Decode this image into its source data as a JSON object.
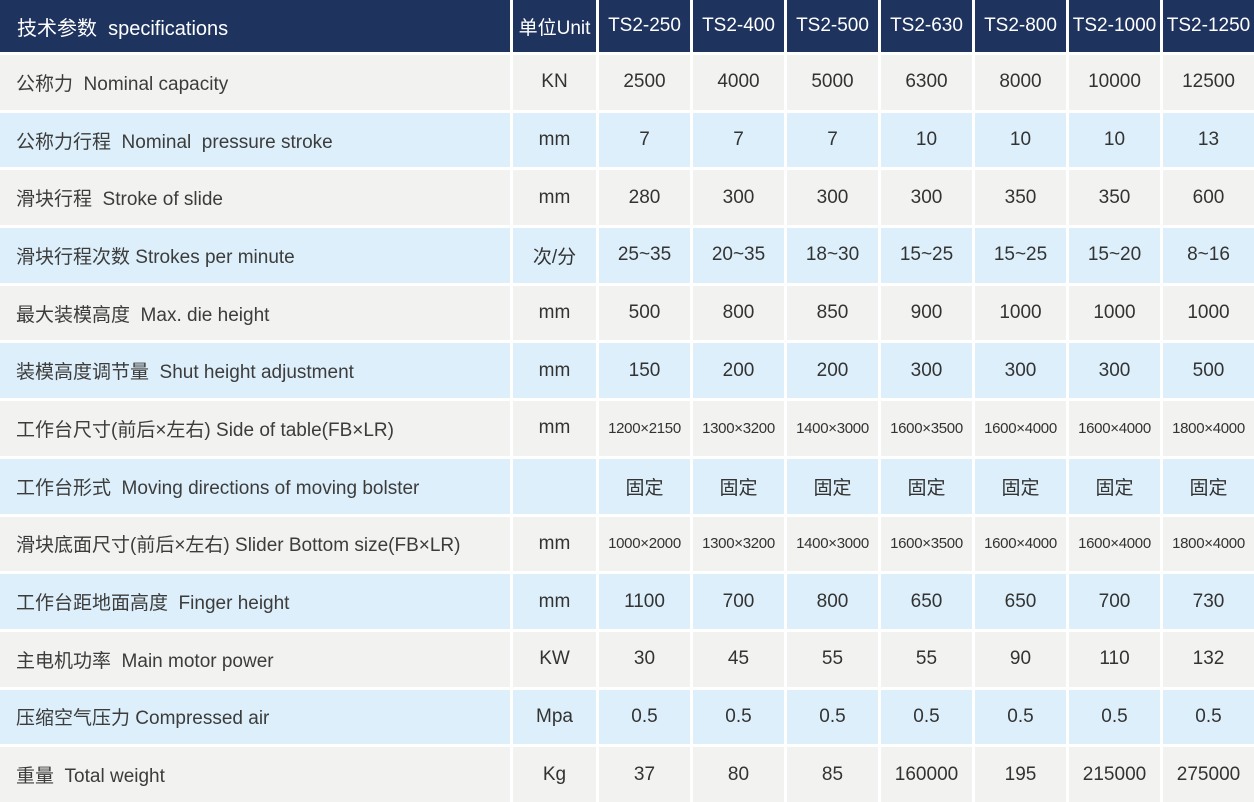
{
  "table": {
    "header": {
      "title": "技术参数  specifications",
      "unit_label": "单位Unit",
      "models": [
        "TS2-250",
        "TS2-400",
        "TS2-500",
        "TS2-630",
        "TS2-800",
        "TS2-1000",
        "TS2-1250"
      ]
    },
    "rows": [
      {
        "label": "公称力  Nominal capacity",
        "unit": "KN",
        "values": [
          "2500",
          "4000",
          "5000",
          "6300",
          "8000",
          "10000",
          "12500"
        ]
      },
      {
        "label": "公称力行程  Nominal  pressure stroke",
        "unit": "mm",
        "values": [
          "7",
          "7",
          "7",
          "10",
          "10",
          "10",
          "13"
        ]
      },
      {
        "label": "滑块行程  Stroke of slide",
        "unit": "mm",
        "values": [
          "280",
          "300",
          "300",
          "300",
          "350",
          "350",
          "600"
        ]
      },
      {
        "label": "滑块行程次数 Strokes per minute",
        "unit": "次/分",
        "values": [
          "25~35",
          "20~35",
          "18~30",
          "15~25",
          "15~25",
          "15~20",
          "8~16"
        ]
      },
      {
        "label": "最大装模高度  Max. die height",
        "unit": "mm",
        "values": [
          "500",
          "800",
          "850",
          "900",
          "1000",
          "1000",
          "1000"
        ]
      },
      {
        "label": "装模高度调节量  Shut height adjustment",
        "unit": "mm",
        "values": [
          "150",
          "200",
          "200",
          "300",
          "300",
          "300",
          "500"
        ]
      },
      {
        "label": "工作台尺寸(前后×左右) Side of table(FB×LR)",
        "unit": "mm",
        "values": [
          "1200×2150",
          "1300×3200",
          "1400×3000",
          "1600×3500",
          "1600×4000",
          "1600×4000",
          "1800×4000"
        ]
      },
      {
        "label": "工作台形式  Moving directions of moving bolster",
        "unit": "",
        "values": [
          "固定",
          "固定",
          "固定",
          "固定",
          "固定",
          "固定",
          "固定"
        ]
      },
      {
        "label": "滑块底面尺寸(前后×左右) Slider Bottom size(FB×LR)",
        "unit": "mm",
        "values": [
          "1000×2000",
          "1300×3200",
          "1400×3000",
          "1600×3500",
          "1600×4000",
          "1600×4000",
          "1800×4000"
        ]
      },
      {
        "label": "工作台距地面高度  Finger height",
        "unit": "mm",
        "values": [
          "1100",
          "700",
          "800",
          "650",
          "650",
          "700",
          "730"
        ]
      },
      {
        "label": "主电机功率  Main motor power",
        "unit": "KW",
        "values": [
          "30",
          "45",
          "55",
          "55",
          "90",
          "110",
          "132"
        ]
      },
      {
        "label": "压缩空气压力 Compressed air",
        "unit": "Mpa",
        "values": [
          "0.5",
          "0.5",
          "0.5",
          "0.5",
          "0.5",
          "0.5",
          "0.5"
        ]
      },
      {
        "label": "重量  Total weight",
        "unit": "Kg",
        "values": [
          "37",
          "80",
          "85",
          "160000",
          "195",
          "215000",
          "275000"
        ]
      }
    ],
    "colors": {
      "header_bg": "#1f335f",
      "row_gray": "#f2f2f0",
      "row_blue": "#ddeffa",
      "separator": "#ffffff",
      "header_text": "#ffffff",
      "body_text": "#333333"
    }
  }
}
